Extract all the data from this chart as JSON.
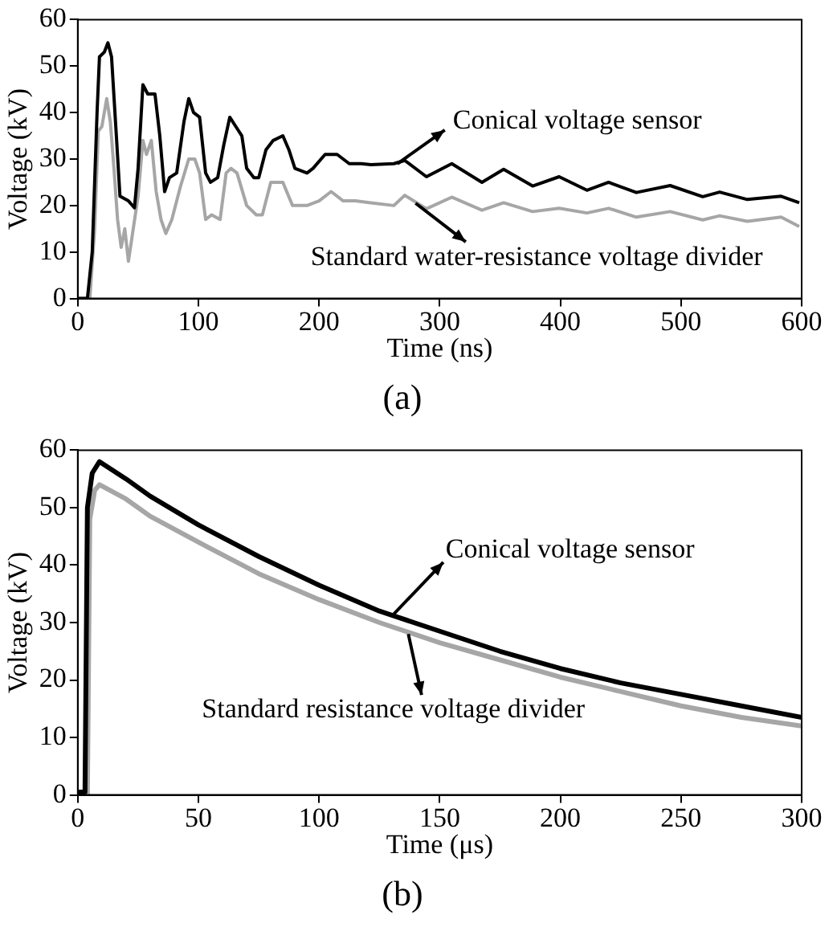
{
  "chart_data": [
    {
      "type": "line",
      "title": "(a)",
      "xlabel": "Time (ns)",
      "ylabel": "Voltage (kV)",
      "xlim": [
        0,
        600
      ],
      "xticks": [
        0,
        100,
        200,
        300,
        400,
        500,
        600
      ],
      "ylim": [
        0,
        60
      ],
      "yticks": [
        0,
        10,
        20,
        30,
        40,
        50,
        60
      ],
      "grid": false,
      "marker": "none",
      "line_style": "solid",
      "annotations": [
        {
          "text": "Conical voltage sensor",
          "x": 265,
          "y": 29
        },
        {
          "text": "Standard water-resistance voltage divider",
          "x": 280,
          "y": 20.5
        }
      ],
      "series": [
        {
          "color": "#000000",
          "x": [
            0,
            8,
            12,
            16,
            18,
            22,
            25,
            28,
            32,
            35,
            42,
            47,
            50,
            54,
            58,
            64,
            68,
            72,
            76,
            82,
            88,
            92,
            96,
            101,
            106,
            110,
            116,
            121,
            126,
            131,
            136,
            140,
            146,
            150,
            156,
            162,
            170,
            175,
            180,
            190,
            195,
            205,
            215,
            225,
            235,
            243,
            262,
            271,
            289,
            310,
            335,
            353,
            377,
            399,
            422,
            440,
            463,
            491,
            518,
            532,
            555,
            583,
            598
          ],
          "values": [
            0,
            0,
            10,
            40,
            52,
            53,
            55,
            52,
            35,
            22,
            21,
            19.5,
            28,
            46,
            44,
            44,
            35,
            23,
            26,
            27,
            38,
            43,
            40,
            39,
            27,
            25,
            26,
            33,
            39,
            37,
            35,
            28,
            26,
            26,
            32,
            34,
            35,
            32,
            28,
            27,
            28,
            31,
            31,
            29,
            29,
            28.8,
            29,
            29.7,
            26.2,
            29,
            25,
            27.8,
            24.2,
            26.2,
            23.3,
            25,
            22.8,
            24.3,
            21.9,
            22.9,
            21.3,
            22,
            20.6
          ]
        },
        {
          "color": "#a6a6a6",
          "x": [
            0,
            10,
            14,
            17,
            20,
            24,
            27,
            30,
            33,
            36,
            39,
            42,
            46,
            50,
            54,
            57,
            61,
            65,
            69,
            73,
            78,
            85,
            92,
            97,
            101,
            106,
            111,
            118,
            123,
            127,
            132,
            140,
            148,
            153,
            160,
            170,
            178,
            190,
            200,
            210,
            220,
            230,
            243,
            262,
            271,
            289,
            310,
            335,
            353,
            377,
            399,
            422,
            440,
            463,
            491,
            518,
            532,
            555,
            583,
            598
          ],
          "values": [
            0,
            0,
            15,
            36,
            37,
            43,
            38,
            28,
            17,
            11,
            15,
            8,
            15,
            22,
            34,
            31,
            34,
            23,
            17,
            14,
            17,
            24,
            30,
            30,
            27,
            17,
            18,
            17,
            27,
            28,
            27,
            20,
            18,
            18,
            25,
            25,
            20,
            20,
            21,
            23,
            21,
            21,
            20.6,
            20,
            22.2,
            19.3,
            21.8,
            19,
            20.6,
            18.7,
            19.4,
            18.4,
            19.4,
            17.5,
            18.7,
            16.9,
            17.8,
            16.6,
            17.5,
            15.5
          ]
        }
      ]
    },
    {
      "type": "line",
      "title": "(b)",
      "xlabel": "Time (μs)",
      "ylabel": "Voltage (kV)",
      "xlim": [
        0,
        300
      ],
      "xticks": [
        0,
        50,
        100,
        150,
        200,
        250,
        300
      ],
      "ylim": [
        0,
        60
      ],
      "yticks": [
        0,
        10,
        20,
        30,
        40,
        50,
        60
      ],
      "grid": false,
      "marker": "none",
      "line_style": "solid",
      "annotations": [
        {
          "text": "Conical voltage sensor",
          "x": 131,
          "y": 31.5
        },
        {
          "text": "Standard resistance voltage divider",
          "x": 137,
          "y": 28
        }
      ],
      "series": [
        {
          "color": "#000000",
          "x": [
            0,
            3,
            4,
            6,
            9,
            20,
            30,
            50,
            75,
            100,
            125,
            150,
            175,
            200,
            225,
            250,
            275,
            300
          ],
          "values": [
            0.5,
            0.5,
            50,
            56,
            58,
            55,
            52,
            47,
            41.5,
            36.5,
            32,
            28.5,
            25,
            22,
            19.5,
            17.5,
            15.5,
            13.5
          ]
        },
        {
          "color": "#a6a6a6",
          "x": [
            0,
            4,
            5,
            7,
            9,
            20,
            30,
            50,
            75,
            100,
            125,
            150,
            175,
            200,
            225,
            250,
            275,
            300
          ],
          "values": [
            0,
            0,
            48,
            53,
            54,
            51.5,
            48.5,
            44,
            38.5,
            34,
            30,
            26.5,
            23.5,
            20.5,
            18,
            15.5,
            13.5,
            12
          ]
        }
      ]
    }
  ]
}
